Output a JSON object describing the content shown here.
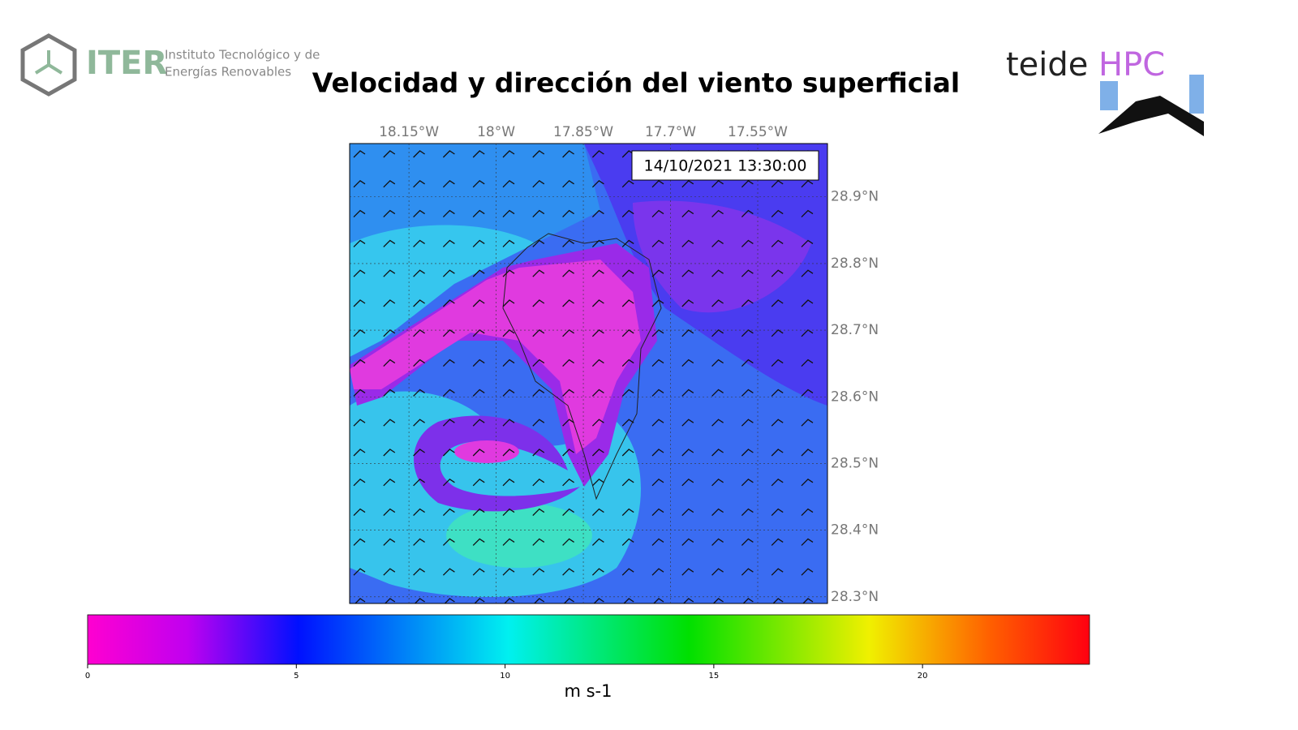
{
  "header": {
    "title": "Velocidad y dirección del viento superficial",
    "logo_left": {
      "name": "ITER",
      "line1": "Instituto Tecnológico y de",
      "line2": "Energías Renovables"
    },
    "logo_right": {
      "name": "teide",
      "accent": "HPC"
    }
  },
  "map": {
    "timestamp": "14/10/2021 13:30:00",
    "xlim": [
      -18.252,
      -17.43
    ],
    "ylim": [
      28.29,
      28.98
    ],
    "xticks": [
      {
        "value": -18.15,
        "label": "18.15°W"
      },
      {
        "value": -18,
        "label": "18°W"
      },
      {
        "value": -17.85,
        "label": "17.85°W"
      },
      {
        "value": -17.7,
        "label": "17.7°W"
      },
      {
        "value": -17.55,
        "label": "17.55°W"
      }
    ],
    "yticks": [
      {
        "value": 28.9,
        "label": "28.9°N"
      },
      {
        "value": 28.8,
        "label": "28.8°N"
      },
      {
        "value": 28.7,
        "label": "28.7°N"
      },
      {
        "value": 28.6,
        "label": "28.6°N"
      },
      {
        "value": 28.5,
        "label": "28.5°N"
      },
      {
        "value": 28.4,
        "label": "28.4°N"
      },
      {
        "value": 28.3,
        "label": "28.3°N"
      }
    ]
  },
  "colorbar": {
    "label": "m s-1",
    "lim": [
      0,
      24
    ],
    "ticks": [
      0,
      5,
      10,
      15,
      20
    ]
  }
}
